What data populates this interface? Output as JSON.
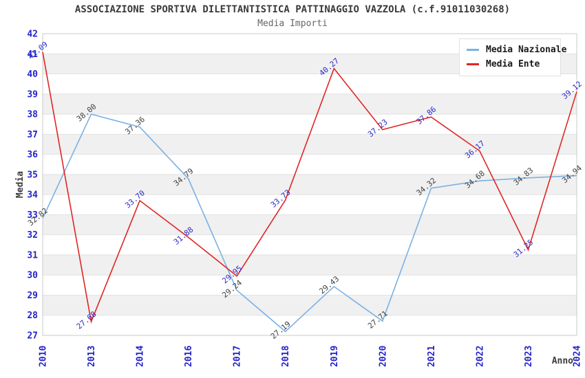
{
  "header": {
    "title": "ASSOCIAZIONE SPORTIVA DILETTANTISTICA PATTINAGGIO VAZZOLA (c.f.91011030268)",
    "subtitle": "Media Importi"
  },
  "chart_data": {
    "type": "line",
    "title": "ASSOCIAZIONE SPORTIVA DILETTANTISTICA PATTINAGGIO VAZZOLA (c.f.91011030268)",
    "subtitle": "Media Importi",
    "xlabel": "Anno",
    "ylabel": "Media",
    "ylim": [
      27,
      42
    ],
    "y_tick_step": 1,
    "grid": "horizontal-bands",
    "legend_position": "top-right",
    "categories": [
      "2010",
      "2013",
      "2014",
      "2016",
      "2017",
      "2018",
      "2019",
      "2020",
      "2021",
      "2022",
      "2023",
      "2024"
    ],
    "series": [
      {
        "name": "Media Nazionale",
        "color": "#7ab1e3",
        "label_color": "#404040",
        "values": [
          32.82,
          38.0,
          37.36,
          34.79,
          29.24,
          27.19,
          29.43,
          27.71,
          34.32,
          34.68,
          34.83,
          34.94
        ]
      },
      {
        "name": "Media Ente",
        "color": "#e02424",
        "label_color": "#2a2ac8",
        "values": [
          41.09,
          27.68,
          33.7,
          31.88,
          29.95,
          33.73,
          40.27,
          37.23,
          37.86,
          36.17,
          31.25,
          39.12
        ]
      }
    ],
    "colors": {
      "tick_label": "#2323cc",
      "axis_title": "#3a3a3a",
      "band_gray": "#f0f0f0",
      "band_white": "#ffffff",
      "gridline": "#e2e2e2",
      "plot_border": "#c9c9c9"
    }
  }
}
